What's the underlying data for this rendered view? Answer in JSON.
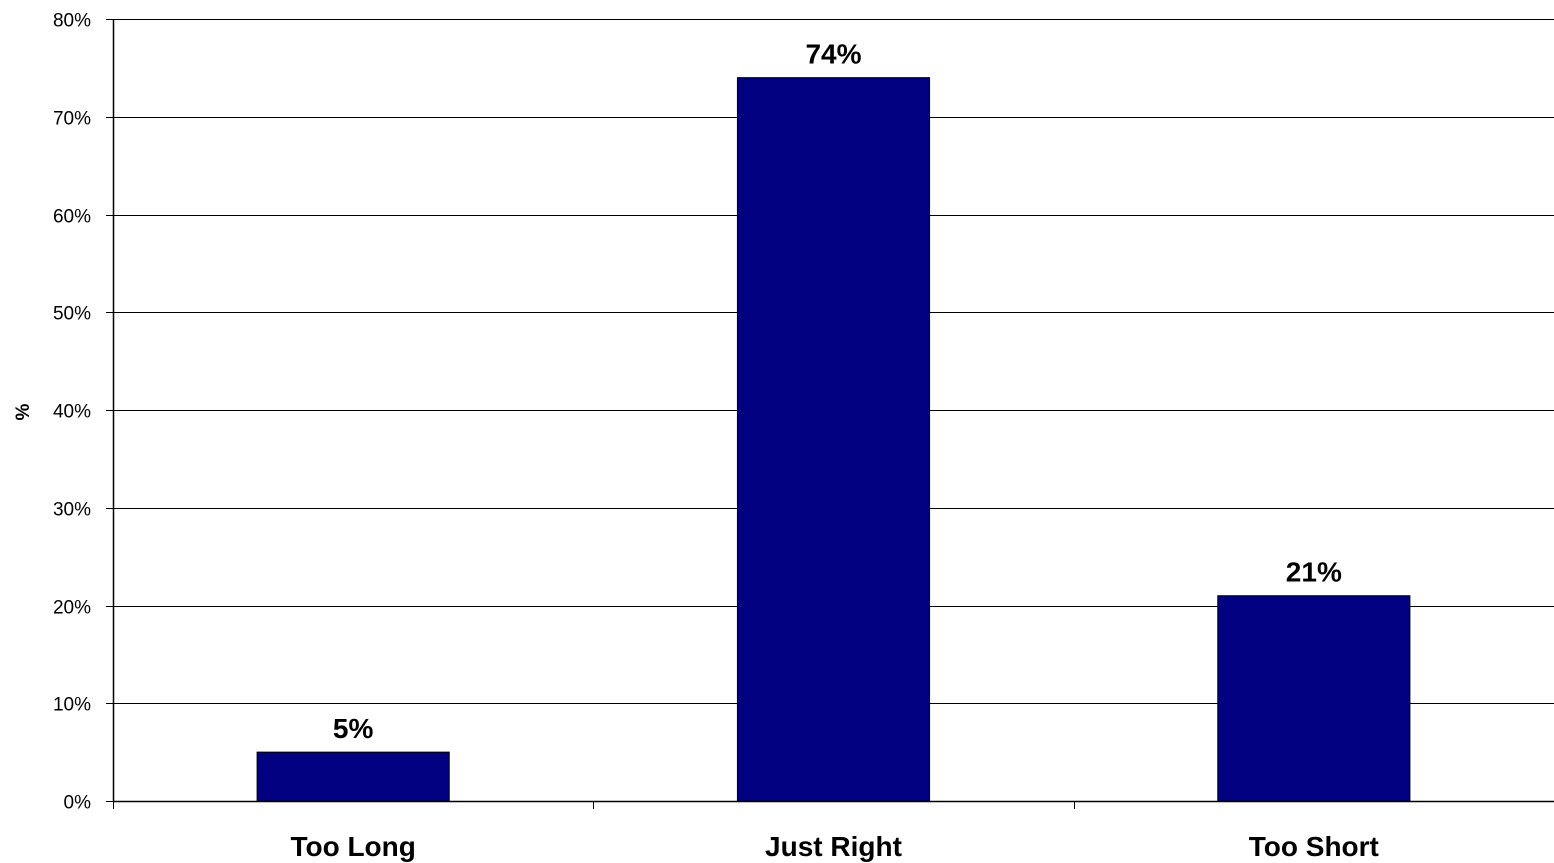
{
  "chart_data": {
    "type": "bar",
    "categories": [
      "Too Long",
      "Just Right",
      "Too Short"
    ],
    "values": [
      5,
      74,
      21
    ],
    "data_labels": [
      "5%",
      "74%",
      "21%"
    ],
    "ylabel": "%",
    "xlabel": "",
    "title": "",
    "ylim": [
      0,
      80
    ],
    "y_ticks": [
      0,
      10,
      20,
      30,
      40,
      50,
      60,
      70,
      80
    ],
    "y_tick_labels": [
      "0%",
      "10%",
      "20%",
      "30%",
      "40%",
      "50%",
      "60%",
      "70%",
      "80%"
    ],
    "grid": true,
    "legend": "none",
    "colors": {
      "bar": "#000080",
      "gridline": "#000000",
      "axis": "#000000",
      "background": "#ffffff"
    }
  }
}
